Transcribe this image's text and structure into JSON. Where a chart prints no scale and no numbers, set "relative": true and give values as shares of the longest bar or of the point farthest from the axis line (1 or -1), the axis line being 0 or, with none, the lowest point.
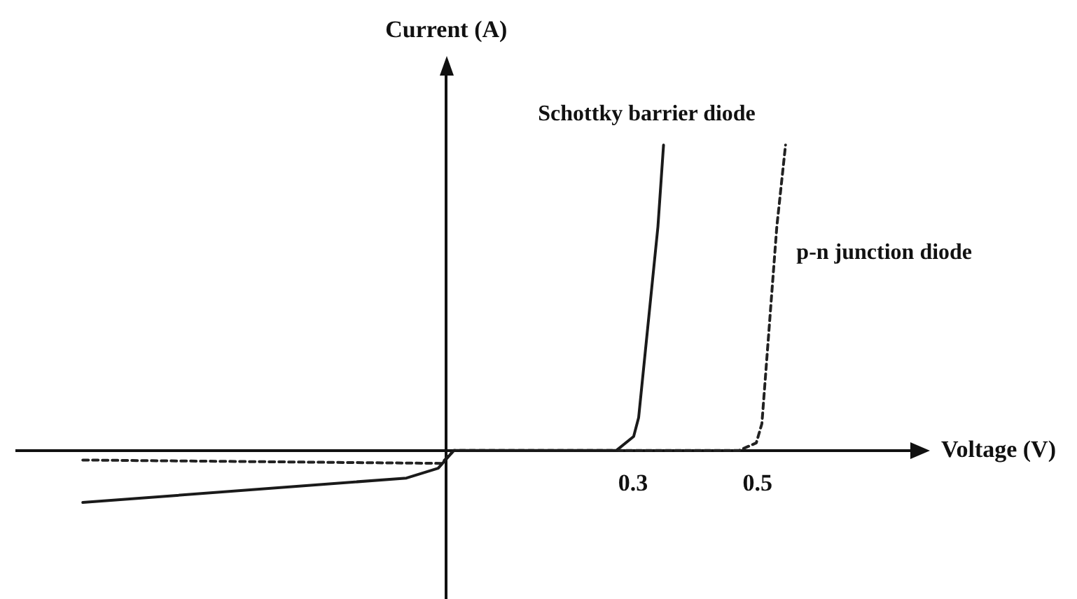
{
  "chart_data": {
    "type": "line",
    "relative": true,
    "xlabel": "Voltage (V)",
    "ylabel": "Current (A)",
    "xlim": [
      -0.69,
      0.75
    ],
    "xticks": [
      0.3,
      0.5
    ],
    "tick_labels": "x",
    "grid": false,
    "legend": false,
    "marker": "none",
    "series": [
      {
        "name": "Schottky barrier diode",
        "color": "#1a1a1a",
        "line_style": "solid",
        "x": [
          -0.584,
          -0.064,
          -0.013,
          0.012,
          0.273,
          0.301,
          0.309,
          0.34,
          0.349
        ],
        "values": [
          -0.17,
          -0.09,
          -0.058,
          0,
          0,
          0.046,
          0.108,
          0.733,
          1
        ]
      },
      {
        "name": "p-n junction diode",
        "color": "#222222",
        "line_style": "dashed",
        "x": [
          -0.584,
          -0.008,
          0.012,
          0.47,
          0.498,
          0.507,
          0.531,
          0.545
        ],
        "values": [
          -0.031,
          -0.042,
          0,
          0,
          0.025,
          0.088,
          0.733,
          1
        ]
      }
    ]
  }
}
